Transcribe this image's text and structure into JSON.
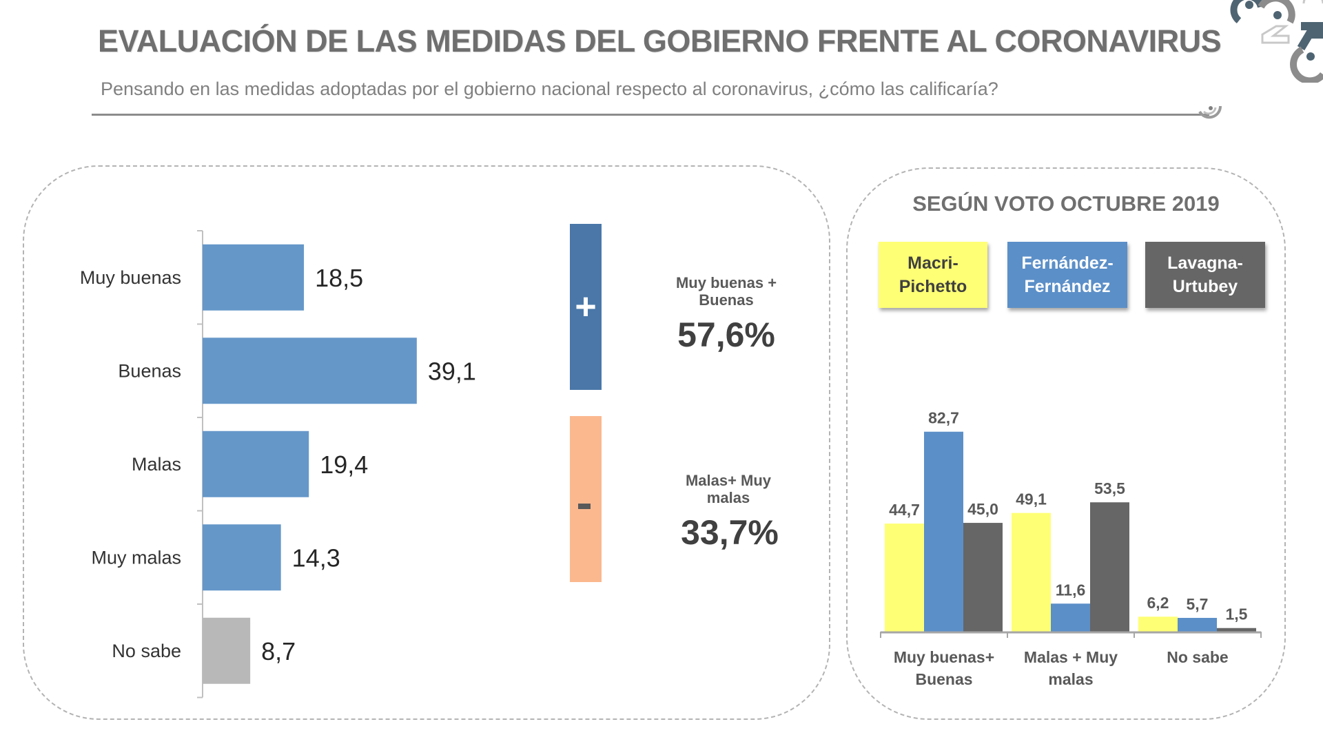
{
  "header": {
    "title": "EVALUACIÓN DE LAS MEDIDAS DEL GOBIERNO FRENTE AL CORONAVIRUS",
    "subtitle": "Pensando en las medidas adoptadas por el gobierno nacional respecto al coronavirus, ¿cómo las calificaría?",
    "logo_icon": "brand-logo-icon"
  },
  "summary": {
    "positive": {
      "symbol": "+",
      "label_line1": "Muy buenas +",
      "label_line2": "Buenas",
      "value": "57,6%",
      "color": "#4a77a8"
    },
    "negative": {
      "symbol": "-",
      "label_line1": "Malas+ Muy",
      "label_line2": "malas",
      "value": "33,7%",
      "color": "#fbb88f"
    }
  },
  "right_panel": {
    "title": "SEGÚN VOTO OCTUBRE 2019",
    "legend": [
      {
        "line1": "Macri-",
        "line2": "Pichetto",
        "color": "#ffff75",
        "text_color": "#404040"
      },
      {
        "line1": "Fernández-",
        "line2": "Fernández",
        "color": "#5b8fc8",
        "text_color": "#ffffff"
      },
      {
        "line1": "Lavagna-",
        "line2": "Urtubey",
        "color": "#666666",
        "text_color": "#ffffff"
      }
    ]
  },
  "chart_data": [
    {
      "type": "bar",
      "orientation": "horizontal",
      "title": "",
      "categories": [
        "Muy buenas",
        "Buenas",
        "Malas",
        "Muy malas",
        "No sabe"
      ],
      "values": [
        18.5,
        39.1,
        19.4,
        14.3,
        8.7
      ],
      "value_labels": [
        "18,5",
        "39,1",
        "19,4",
        "14,3",
        "8,7"
      ],
      "colors": [
        "#6597c9",
        "#6597c9",
        "#6597c9",
        "#6597c9",
        "#b8b8b8"
      ],
      "xlabel": "",
      "ylabel": "",
      "xlim": [
        0,
        100
      ],
      "grid": false
    },
    {
      "type": "bar",
      "orientation": "vertical",
      "title": "SEGÚN VOTO OCTUBRE 2019",
      "categories": [
        [
          "Muy buenas+",
          "Buenas"
        ],
        [
          "Malas + Muy",
          "malas"
        ],
        [
          "No sabe"
        ]
      ],
      "series": [
        {
          "name": "Macri-Pichetto",
          "color": "#ffff75",
          "values": [
            44.7,
            49.1,
            6.2
          ],
          "labels": [
            "44,7",
            "49,1",
            "6,2"
          ]
        },
        {
          "name": "Fernández-Fernández",
          "color": "#5b8fc8",
          "values": [
            82.7,
            11.6,
            5.7
          ],
          "labels": [
            "82,7",
            "11,6",
            "5,7"
          ]
        },
        {
          "name": "Lavagna-Urtubey",
          "color": "#666666",
          "values": [
            45.0,
            53.5,
            1.5
          ],
          "labels": [
            "45,0",
            "53,5",
            "1,5"
          ]
        }
      ],
      "ylim": [
        0,
        100
      ],
      "legend": "top",
      "grid": false
    }
  ]
}
